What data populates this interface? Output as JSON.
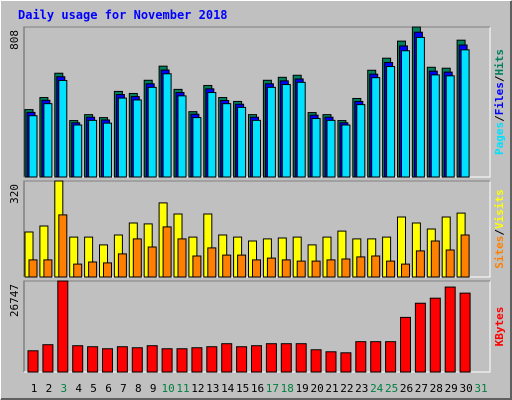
{
  "chart_data": [
    {
      "type": "bar",
      "title": "Daily usage for November 2018",
      "separator": "/",
      "ylim": [
        0,
        808
      ],
      "yticks": [
        808
      ],
      "series": [
        {
          "name": "Hits",
          "color": "#00805c",
          "values": [
            363,
            428,
            559,
            304,
            336,
            320,
            461,
            450,
            521,
            597,
            472,
            352,
            493,
            428,
            407,
            336,
            521,
            537,
            548,
            347,
            336,
            304,
            423,
            575,
            640,
            732,
            808,
            591,
            586,
            737,
            null
          ]
        },
        {
          "name": "Files",
          "color": "#0000ff",
          "values": [
            348,
            413,
            540,
            292,
            322,
            307,
            444,
            433,
            502,
            576,
            455,
            338,
            475,
            412,
            392,
            322,
            502,
            518,
            528,
            333,
            322,
            292,
            407,
            554,
            617,
            706,
            780,
            570,
            565,
            711,
            null
          ]
        },
        {
          "name": "Pages",
          "color": "#00e0ff",
          "values": [
            330,
            395,
            520,
            280,
            305,
            290,
            425,
            415,
            483,
            556,
            437,
            320,
            455,
            395,
            375,
            305,
            483,
            498,
            510,
            315,
            305,
            280,
            390,
            535,
            595,
            680,
            752,
            550,
            545,
            685,
            null
          ]
        }
      ]
    },
    {
      "type": "bar",
      "separator": "/",
      "ylim": [
        0,
        320
      ],
      "yticks": [
        320
      ],
      "series": [
        {
          "name": "Visits",
          "color": "#ffff00",
          "values": [
            150,
            170,
            320,
            133,
            133,
            107,
            140,
            180,
            177,
            247,
            210,
            133,
            210,
            140,
            133,
            120,
            127,
            130,
            133,
            107,
            133,
            153,
            127,
            127,
            133,
            200,
            180,
            160,
            200,
            213,
            null
          ]
        },
        {
          "name": "Sites",
          "color": "#ff8000",
          "values": [
            57,
            57,
            207,
            43,
            50,
            47,
            77,
            127,
            100,
            167,
            127,
            70,
            97,
            73,
            73,
            57,
            63,
            57,
            53,
            53,
            57,
            60,
            67,
            70,
            53,
            43,
            87,
            120,
            90,
            140,
            null
          ]
        }
      ]
    },
    {
      "type": "bar",
      "ylim": [
        0,
        26747
      ],
      "yticks": [
        26747
      ],
      "categories": [
        "1",
        "2",
        "3",
        "4",
        "5",
        "6",
        "7",
        "8",
        "9",
        "10",
        "11",
        "12",
        "13",
        "14",
        "15",
        "16",
        "17",
        "18",
        "19",
        "20",
        "21",
        "22",
        "23",
        "24",
        "25",
        "26",
        "27",
        "28",
        "29",
        "30",
        "31"
      ],
      "category_colors": [
        "#000000",
        "#000000",
        "#008040",
        "#000000",
        "#000000",
        "#000000",
        "#000000",
        "#000000",
        "#000000",
        "#008040",
        "#008040",
        "#000000",
        "#000000",
        "#000000",
        "#000000",
        "#000000",
        "#008040",
        "#008040",
        "#000000",
        "#000000",
        "#000000",
        "#000000",
        "#000000",
        "#008040",
        "#008040",
        "#000000",
        "#000000",
        "#000000",
        "#000000",
        "#000000",
        "#008040"
      ],
      "series": [
        {
          "name": "KBytes",
          "color": "#ff0000",
          "values": [
            6241,
            8024,
            26747,
            7727,
            7430,
            6835,
            7430,
            7133,
            7727,
            6835,
            6835,
            7133,
            7430,
            8321,
            7430,
            7727,
            8321,
            8321,
            8321,
            6538,
            5944,
            5647,
            8916,
            8916,
            8916,
            16048,
            20209,
            21695,
            24964,
            23181,
            null
          ]
        }
      ]
    }
  ]
}
